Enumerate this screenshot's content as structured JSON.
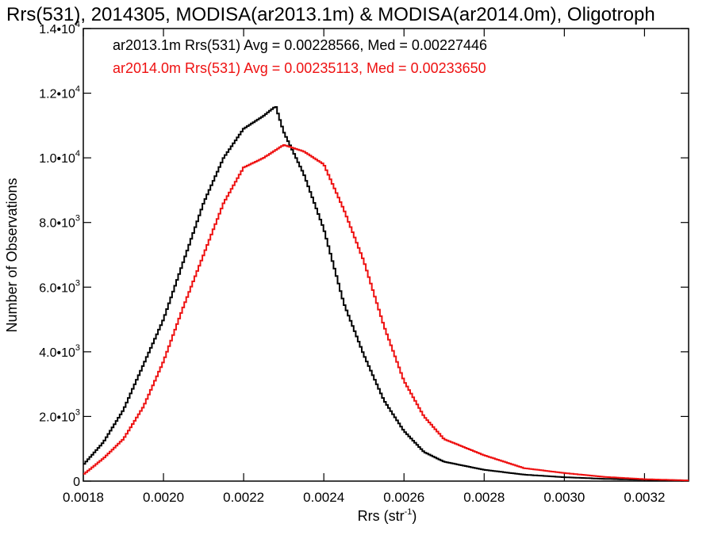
{
  "chart_data": {
    "type": "line",
    "title": "Rrs(531), 2014305, MODISA(ar2013.1m) & MODISA(ar2014.0m), Oligotroph",
    "xlabel": "Rrs (str",
    "xlabel_sup": "-1",
    "xlabel_close": ")",
    "ylabel": "Number of Observations",
    "xlim": [
      0.0018,
      0.00331
    ],
    "ylim": [
      0,
      14000
    ],
    "x_ticks": [
      0.0018,
      0.002,
      0.0022,
      0.0024,
      0.0026,
      0.0028,
      0.003,
      0.0032
    ],
    "x_tick_labels": [
      "0.0018",
      "0.0020",
      "0.0022",
      "0.0024",
      "0.0026",
      "0.0028",
      "0.0030",
      "0.0032"
    ],
    "y_ticks": [
      0,
      2000,
      4000,
      6000,
      8000,
      10000,
      12000,
      14000
    ],
    "y_tick_mantissas": [
      "0",
      "2.0•10",
      "4.0•10",
      "6.0•10",
      "8.0•10",
      "1.0•10",
      "1.2•10",
      "1.4•10"
    ],
    "y_tick_exponents": [
      "",
      "3",
      "3",
      "3",
      "3",
      "4",
      "4",
      "4"
    ],
    "grid": false,
    "legend_position": "top-left",
    "series": [
      {
        "name": "ar2013.1m",
        "color": "#000000",
        "legend": "ar2013.1m Rrs(531) Avg = 0.00228566, Med = 0.00227446",
        "x": [
          0.0018,
          0.00185,
          0.0019,
          0.00195,
          0.002,
          0.00205,
          0.0021,
          0.00215,
          0.0022,
          0.00225,
          0.00228,
          0.0023,
          0.00235,
          0.0024,
          0.00245,
          0.0025,
          0.00255,
          0.0026,
          0.00265,
          0.0027,
          0.0028,
          0.0029,
          0.003,
          0.0031,
          0.0032,
          0.00331
        ],
        "values": [
          500,
          1200,
          2200,
          3600,
          5000,
          6800,
          8600,
          10000,
          10900,
          11300,
          11600,
          10800,
          9500,
          7800,
          5500,
          3900,
          2500,
          1550,
          900,
          600,
          350,
          200,
          120,
          70,
          40,
          20
        ]
      },
      {
        "name": "ar2014.0m",
        "color": "#ee1111",
        "legend": "ar2014.0m Rrs(531) Avg = 0.00235113, Med = 0.00233650",
        "x": [
          0.0018,
          0.00185,
          0.0019,
          0.00195,
          0.002,
          0.00205,
          0.0021,
          0.00215,
          0.0022,
          0.00225,
          0.0023,
          0.00235,
          0.0024,
          0.00245,
          0.0025,
          0.00255,
          0.0026,
          0.00265,
          0.0027,
          0.0028,
          0.0029,
          0.003,
          0.0031,
          0.0032,
          0.00331
        ],
        "values": [
          200,
          700,
          1300,
          2300,
          3700,
          5400,
          7000,
          8600,
          9700,
          10000,
          10400,
          10200,
          9800,
          8400,
          6800,
          4800,
          3100,
          2000,
          1300,
          800,
          400,
          250,
          130,
          60,
          20
        ]
      }
    ]
  }
}
